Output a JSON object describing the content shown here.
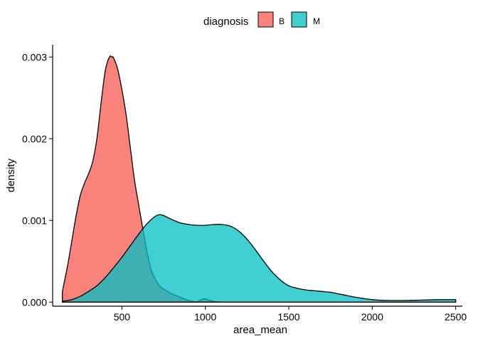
{
  "chart_data": {
    "type": "area",
    "subtype": "density",
    "title": "",
    "xlabel": "area_mean",
    "ylabel": "density",
    "xlim": [
      85,
      2540
    ],
    "ylim": [
      -5e-05,
      0.00315
    ],
    "x_ticks": [
      500,
      1000,
      1500,
      2000,
      2500
    ],
    "x_tick_labels": [
      "500",
      "1000",
      "1500",
      "2000",
      "2500"
    ],
    "y_ticks": [
      0,
      0.001,
      0.002,
      0.003
    ],
    "y_tick_labels": [
      "0.000",
      "0.001",
      "0.002",
      "0.003"
    ],
    "grid": false,
    "legend": {
      "title": "diagnosis",
      "position": "top"
    },
    "series": [
      {
        "name": "B",
        "color": "#F8766D",
        "opacity": 0.9,
        "x": [
          143.5,
          150,
          175,
          200,
          225,
          250,
          275,
          300,
          325,
          350,
          375,
          400,
          425,
          440,
          450,
          475,
          500,
          525,
          550,
          575,
          600,
          625,
          650,
          675,
          700,
          725,
          750,
          775,
          800,
          850,
          900,
          950,
          975,
          1000,
          1025,
          1050,
          1100
        ],
        "y": [
          0.00012,
          0.0002,
          0.00045,
          0.00075,
          0.00105,
          0.0013,
          0.00145,
          0.00157,
          0.00172,
          0.002,
          0.00243,
          0.00283,
          0.003,
          0.003,
          0.00299,
          0.00285,
          0.0026,
          0.0023,
          0.0019,
          0.0015,
          0.0012,
          0.0009,
          0.00062,
          0.0004,
          0.00028,
          0.0002,
          0.00016,
          0.00013,
          0.0001,
          6e-05,
          2e-05,
          5e-06,
          3e-05,
          4e-05,
          2e-05,
          1e-05,
          0
        ]
      },
      {
        "name": "M",
        "color": "#00BFC4",
        "opacity": 0.75,
        "x": [
          143.5,
          200,
          250,
          300,
          350,
          400,
          450,
          500,
          550,
          600,
          650,
          700,
          725,
          750,
          800,
          850,
          900,
          950,
          1000,
          1050,
          1100,
          1150,
          1200,
          1250,
          1300,
          1350,
          1400,
          1450,
          1500,
          1550,
          1600,
          1650,
          1700,
          1750,
          1800,
          1850,
          1900,
          2000,
          2100,
          2200,
          2300,
          2400,
          2500
        ],
        "y": [
          1e-05,
          3e-05,
          7e-05,
          0.00013,
          0.0002,
          0.0003,
          0.00042,
          0.00055,
          0.00069,
          0.00083,
          0.00096,
          0.00105,
          0.00107,
          0.00106,
          0.00101,
          0.00097,
          0.00095,
          0.00094,
          0.00094,
          0.00095,
          0.00095,
          0.00093,
          0.00087,
          0.00077,
          0.00064,
          0.0005,
          0.00037,
          0.00027,
          0.0002,
          0.00017,
          0.00015,
          0.00014,
          0.00013,
          0.00012,
          0.0001,
          8e-05,
          6e-05,
          3e-05,
          2e-05,
          2e-05,
          2.5e-05,
          3e-05,
          3e-05
        ]
      }
    ]
  }
}
